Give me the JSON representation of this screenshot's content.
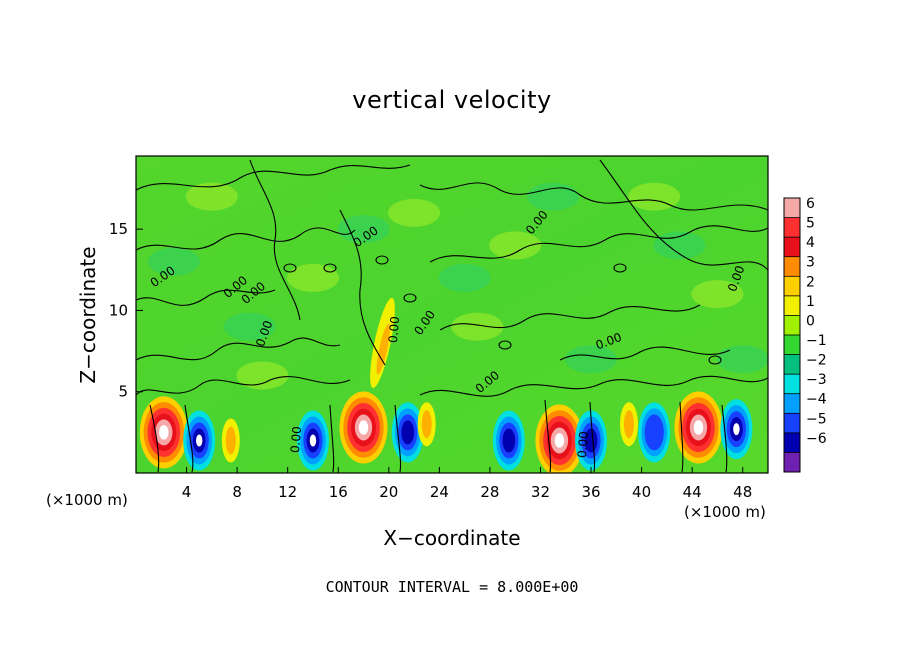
{
  "chart_data": {
    "type": "heatmap",
    "title": "vertical velocity",
    "xlabel": "X−coordinate",
    "ylabel": "Z−coordinate",
    "x_unit": "(×1000 m)",
    "contour_interval_text": "CONTOUR INTERVAL = 8.000E+00",
    "xlim": [
      0,
      50
    ],
    "ylim": [
      0,
      19.5
    ],
    "x_ticks": [
      4,
      8,
      12,
      16,
      20,
      24,
      28,
      32,
      36,
      40,
      44,
      48
    ],
    "y_ticks": [
      5,
      10,
      15
    ],
    "contour_labels": [
      "0.00",
      "0.00",
      "0.00",
      "0.00",
      "0.00",
      "0.00",
      "0.00",
      "0.00",
      "0.00",
      "0.00",
      "0.00",
      "0.00",
      "0.00"
    ],
    "colorbar": {
      "ticks": [
        "6",
        "5",
        "4",
        "3",
        "2",
        "1",
        "0",
        "−1",
        "−2",
        "−3",
        "−4",
        "−5",
        "−6"
      ],
      "colors": [
        "#f6a8a8",
        "#ff3030",
        "#e8101a",
        "#ff8c00",
        "#ffd000",
        "#f0f000",
        "#a0f000",
        "#30d830",
        "#00c080",
        "#00e0e0",
        "#00a0ff",
        "#1840ff",
        "#0000b0",
        "#7020b0"
      ]
    },
    "features": [
      {
        "type": "updraft",
        "x": 2.2,
        "z": 2.5,
        "value": 6
      },
      {
        "type": "downdraft",
        "x": 5.0,
        "z": 2.0,
        "value": -5
      },
      {
        "type": "weak-updraft",
        "x": 7.5,
        "z": 2.0,
        "value": 3
      },
      {
        "type": "downdraft",
        "x": 14.0,
        "z": 2.0,
        "value": -5
      },
      {
        "type": "updraft",
        "x": 18.0,
        "z": 2.8,
        "value": 6
      },
      {
        "type": "downdraft",
        "x": 21.5,
        "z": 2.5,
        "value": -4
      },
      {
        "type": "weak-updraft",
        "x": 23.0,
        "z": 3.0,
        "value": 2
      },
      {
        "type": "downdraft",
        "x": 29.5,
        "z": 2.0,
        "value": -4
      },
      {
        "type": "updraft",
        "x": 33.5,
        "z": 2.0,
        "value": 6
      },
      {
        "type": "downdraft",
        "x": 36.0,
        "z": 2.0,
        "value": -4
      },
      {
        "type": "weak-updraft",
        "x": 39.0,
        "z": 3.0,
        "value": 2
      },
      {
        "type": "downdraft",
        "x": 41.0,
        "z": 2.5,
        "value": -3
      },
      {
        "type": "updraft",
        "x": 44.5,
        "z": 2.8,
        "value": 6
      },
      {
        "type": "downdraft",
        "x": 47.5,
        "z": 2.7,
        "value": -5
      },
      {
        "type": "plume",
        "x": 19.5,
        "z": 8.0,
        "value": 2
      }
    ]
  }
}
